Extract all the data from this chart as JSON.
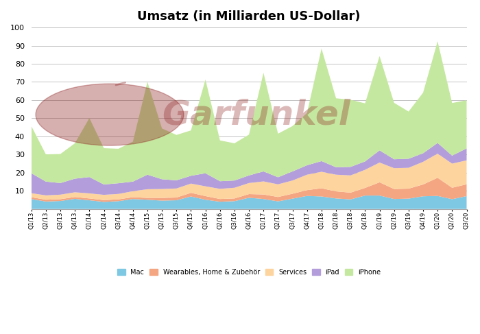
{
  "title": "Umsatz (in Milliarden US-Dollar)",
  "ylim": [
    0,
    100
  ],
  "yticks": [
    10,
    20,
    30,
    40,
    50,
    60,
    70,
    80,
    90,
    100
  ],
  "categories": [
    "Q1/13",
    "Q2/13",
    "Q3/13",
    "Q4/13",
    "Q1/14",
    "Q2/14",
    "Q3/14",
    "Q4/14",
    "Q1/15",
    "Q2/15",
    "Q3/15",
    "Q4/15",
    "Q1/16",
    "Q2/16",
    "Q3/16",
    "Q4/16",
    "Q1/17",
    "Q2/17",
    "Q3/17",
    "Q4/17",
    "Q1/18",
    "Q2/18",
    "Q3/18",
    "Q4/18",
    "Q1/19",
    "Q2/19",
    "Q3/19",
    "Q4/19",
    "Q1/20",
    "Q2/20",
    "Q3/20"
  ],
  "mac": [
    5.5,
    4.1,
    4.4,
    5.6,
    4.8,
    3.9,
    4.3,
    5.5,
    5.1,
    4.6,
    4.8,
    6.9,
    5.1,
    4.0,
    4.3,
    6.2,
    5.5,
    4.2,
    5.7,
    7.2,
    6.9,
    5.8,
    5.3,
    7.4,
    7.4,
    5.5,
    5.7,
    7.0,
    7.2,
    5.4,
    7.1
  ],
  "wearables": [
    1.0,
    1.0,
    1.0,
    1.0,
    1.0,
    1.0,
    1.0,
    1.0,
    1.0,
    1.5,
    1.5,
    2.0,
    2.0,
    1.5,
    1.5,
    2.0,
    2.5,
    2.4,
    2.7,
    3.2,
    4.5,
    3.9,
    3.7,
    4.2,
    7.3,
    5.5,
    5.5,
    6.5,
    10.0,
    6.3,
    6.5
  ],
  "services": [
    2.2,
    2.4,
    2.5,
    2.6,
    2.8,
    2.9,
    3.0,
    3.3,
    4.8,
    4.9,
    5.0,
    5.1,
    5.4,
    5.6,
    5.9,
    6.1,
    7.2,
    7.0,
    7.3,
    8.5,
    9.1,
    9.2,
    9.5,
    10.0,
    10.9,
    11.5,
    11.5,
    12.5,
    13.3,
    13.3,
    13.2
  ],
  "ipad": [
    11.0,
    7.6,
    6.4,
    7.5,
    9.0,
    5.7,
    5.9,
    5.3,
    8.0,
    5.4,
    4.5,
    4.3,
    7.2,
    4.2,
    4.0,
    4.2,
    5.5,
    3.9,
    5.0,
    5.2,
    5.9,
    4.1,
    4.7,
    4.6,
    6.7,
    4.9,
    5.0,
    4.7,
    5.9,
    4.4,
    6.6
  ],
  "iphone": [
    26.0,
    15.0,
    16.0,
    19.5,
    32.5,
    20.0,
    19.0,
    22.0,
    51.2,
    28.0,
    25.0,
    25.0,
    51.6,
    22.5,
    20.5,
    22.5,
    54.4,
    24.0,
    25.0,
    28.8,
    62.0,
    38.0,
    37.0,
    32.0,
    52.0,
    31.1,
    26.0,
    33.4,
    56.0,
    29.0,
    26.5
  ],
  "colors": {
    "mac": "#7ec8e3",
    "wearables": "#f4a582",
    "services": "#fdd49e",
    "ipad": "#b39ddb",
    "iphone": "#c5e8a0"
  },
  "legend_labels": [
    "Mac",
    "Wearables, Home & Zubehör",
    "Services",
    "iPad",
    "iPhone"
  ],
  "background_color": "#ffffff",
  "plot_bg_color": "#ffffff",
  "watermark_color": "#8b1a1a"
}
